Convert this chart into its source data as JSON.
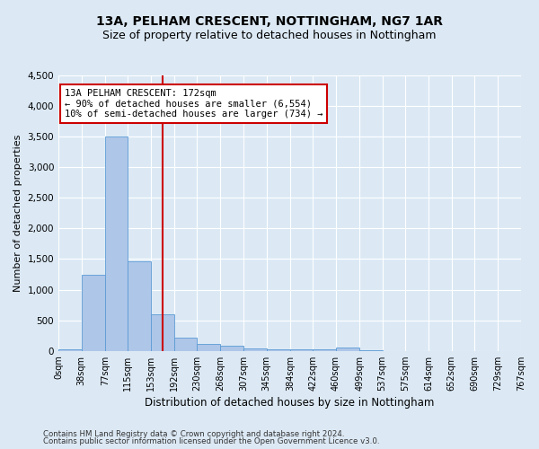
{
  "title": "13A, PELHAM CRESCENT, NOTTINGHAM, NG7 1AR",
  "subtitle": "Size of property relative to detached houses in Nottingham",
  "xlabel": "Distribution of detached houses by size in Nottingham",
  "ylabel": "Number of detached properties",
  "footer_line1": "Contains HM Land Registry data © Crown copyright and database right 2024.",
  "footer_line2": "Contains public sector information licensed under the Open Government Licence v3.0.",
  "bar_edges": [
    0,
    38,
    77,
    115,
    153,
    192,
    230,
    268,
    307,
    345,
    384,
    422,
    460,
    499,
    537,
    575,
    614,
    652,
    690,
    729,
    767
  ],
  "bar_heights": [
    30,
    1250,
    3500,
    1470,
    590,
    220,
    115,
    80,
    40,
    30,
    25,
    20,
    60,
    5,
    0,
    0,
    0,
    0,
    0,
    0
  ],
  "bar_color": "#aec6e8",
  "bar_edge_color": "#5b9bd5",
  "vline_x": 172,
  "vline_color": "#cc0000",
  "annotation_text": "13A PELHAM CRESCENT: 172sqm\n← 90% of detached houses are smaller (6,554)\n10% of semi-detached houses are larger (734) →",
  "annotation_box_color": "#ffffff",
  "annotation_border_color": "#cc0000",
  "ylim": [
    0,
    4500
  ],
  "yticks": [
    0,
    500,
    1000,
    1500,
    2000,
    2500,
    3000,
    3500,
    4000,
    4500
  ],
  "background_color": "#dce9f5",
  "plot_background_color": "#dce9f5",
  "title_fontsize": 10,
  "subtitle_fontsize": 9,
  "tick_label_fontsize": 7,
  "ylabel_fontsize": 8,
  "xlabel_fontsize": 8.5
}
